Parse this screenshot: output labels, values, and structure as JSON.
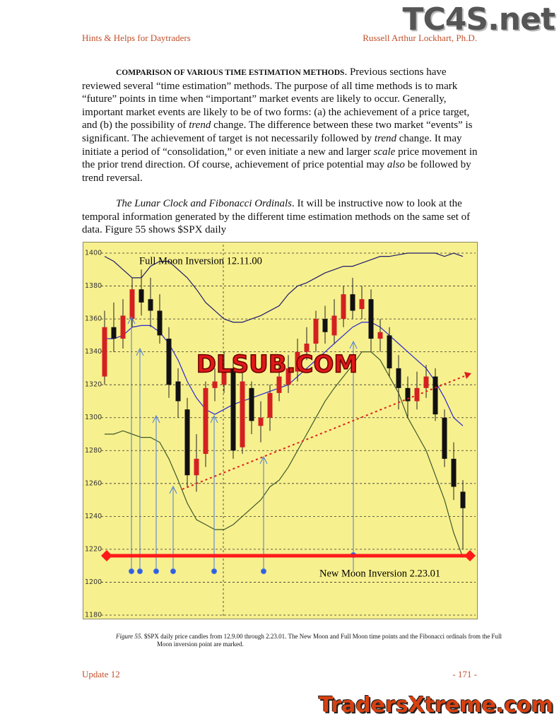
{
  "header": {
    "left": "Hints & Helps for Daytraders",
    "right": "Russell Arthur Lockhart, Ph.D."
  },
  "watermarks": {
    "top": "TC4S.net",
    "chart": "DLSUB.COM",
    "bottom": "TradersXtreme.com"
  },
  "paragraphs": [
    [
      {
        "style": "bold",
        "text": "COMPARISON OF VARIOUS TIME ESTIMATION METHODS"
      },
      {
        "style": "normal",
        "text": ". Previous sections have reviewed several “time estimation” methods. The purpose of all time methods is to mark “future” points in time when “important” market events are likely to occur. Generally, important market events are likely to be of two forms: (a) the achievement of a price target, and (b) the possibility of "
      },
      {
        "style": "italic",
        "text": "trend"
      },
      {
        "style": "normal",
        "text": " change. The difference between these two market “events” is significant. The achievement of target is not necessarily followed by "
      },
      {
        "style": "italic",
        "text": "trend"
      },
      {
        "style": "normal",
        "text": " change. It may initiate a period of “consolidation,” or even initiate a new and larger "
      },
      {
        "style": "italic",
        "text": "scale"
      },
      {
        "style": "normal",
        "text": " price movement in the prior trend direction. Of course, achievement of price potential may "
      },
      {
        "style": "italic",
        "text": "also"
      },
      {
        "style": "normal",
        "text": " be followed by trend reversal."
      }
    ],
    [
      {
        "style": "italic",
        "text": "The Lunar Clock and Fibonacci Ordinals"
      },
      {
        "style": "normal",
        "text": ". It will be instructive now to look at the temporal information generated by the different time estimation methods on the same set of data. Figure 55 shows $SPX daily"
      }
    ]
  ],
  "chart_data": {
    "type": "candlestick",
    "annotations": [
      "Full Moon Inversion 12.11.00",
      "New Moon Inversion 2.23.01"
    ],
    "ylim": [
      1180,
      1400
    ],
    "yticks": [
      1180,
      1200,
      1220,
      1240,
      1260,
      1280,
      1300,
      1320,
      1340,
      1360,
      1380,
      1400
    ],
    "grid": true,
    "up_color": "#d42020",
    "down_color": "#111111",
    "open": [
      1325,
      1355,
      1348,
      1360,
      1378,
      1372,
      1365,
      1348,
      1322,
      1305,
      1265,
      1278,
      1318,
      1320,
      1330,
      1282,
      1318,
      1295,
      1300,
      1315,
      1320,
      1328,
      1340,
      1345,
      1360,
      1350,
      1360,
      1375,
      1366,
      1372,
      1348,
      1350,
      1330,
      1318,
      1310,
      1318,
      1325,
      1300,
      1275,
      1255
    ],
    "high": [
      1365,
      1370,
      1372,
      1385,
      1390,
      1385,
      1375,
      1355,
      1330,
      1312,
      1290,
      1322,
      1330,
      1340,
      1335,
      1330,
      1322,
      1310,
      1320,
      1332,
      1338,
      1348,
      1355,
      1365,
      1368,
      1372,
      1380,
      1385,
      1380,
      1378,
      1360,
      1355,
      1338,
      1325,
      1328,
      1332,
      1330,
      1305,
      1285,
      1262
    ],
    "low": [
      1320,
      1340,
      1342,
      1355,
      1362,
      1355,
      1345,
      1312,
      1300,
      1258,
      1255,
      1270,
      1310,
      1315,
      1275,
      1278,
      1290,
      1285,
      1292,
      1310,
      1315,
      1322,
      1335,
      1340,
      1345,
      1345,
      1355,
      1360,
      1360,
      1340,
      1340,
      1325,
      1305,
      1300,
      1305,
      1312,
      1298,
      1270,
      1250,
      1220
    ],
    "close": [
      1355,
      1348,
      1362,
      1378,
      1370,
      1365,
      1350,
      1320,
      1310,
      1265,
      1275,
      1318,
      1322,
      1330,
      1280,
      1322,
      1298,
      1300,
      1315,
      1325,
      1330,
      1340,
      1345,
      1360,
      1352,
      1362,
      1375,
      1365,
      1372,
      1348,
      1352,
      1330,
      1318,
      1310,
      1318,
      1325,
      1302,
      1275,
      1258,
      1245
    ],
    "series": [
      {
        "color": "#1c1c6e",
        "values": [
          1398,
          1395,
          1390,
          1385,
          1385,
          1392,
          1395,
          1395,
          1390,
          1385,
          1378,
          1370,
          1365,
          1360,
          1358,
          1358,
          1360,
          1362,
          1365,
          1368,
          1375,
          1380,
          1382,
          1385,
          1388,
          1390,
          1392,
          1392,
          1394,
          1396,
          1398,
          1398,
          1399,
          1400,
          1400,
          1400,
          1400,
          1398,
          1400,
          1398
        ]
      },
      {
        "color": "#2a2ad0",
        "values": [
          1348,
          1348,
          1350,
          1355,
          1356,
          1356,
          1352,
          1345,
          1335,
          1322,
          1312,
          1305,
          1302,
          1305,
          1308,
          1310,
          1312,
          1314,
          1316,
          1318,
          1320,
          1325,
          1330,
          1335,
          1340,
          1345,
          1350,
          1355,
          1358,
          1358,
          1355,
          1350,
          1345,
          1340,
          1335,
          1330,
          1322,
          1312,
          1300,
          1295
        ]
      },
      {
        "color": "#3d5a2a",
        "values": [
          1290,
          1290,
          1292,
          1290,
          1288,
          1288,
          1285,
          1275,
          1262,
          1248,
          1238,
          1235,
          1232,
          1232,
          1235,
          1240,
          1245,
          1250,
          1258,
          1262,
          1270,
          1280,
          1290,
          1300,
          1310,
          1318,
          1325,
          1332,
          1340,
          1340,
          1335,
          1325,
          1315,
          1300,
          1290,
          1280,
          1265,
          1250,
          1230,
          1215
        ]
      }
    ]
  },
  "caption": [
    {
      "style": "italic",
      "text": "Figure 55"
    },
    {
      "style": "normal",
      "text": ". $SPX daily price candles from 12.9.00 through 2.23.01. The New Moon and Full Moon time points and the Fibonacci ordinals from the Full Moon inversion point are marked."
    }
  ],
  "footer": {
    "left": "Update 12",
    "right": "- 171 -"
  }
}
